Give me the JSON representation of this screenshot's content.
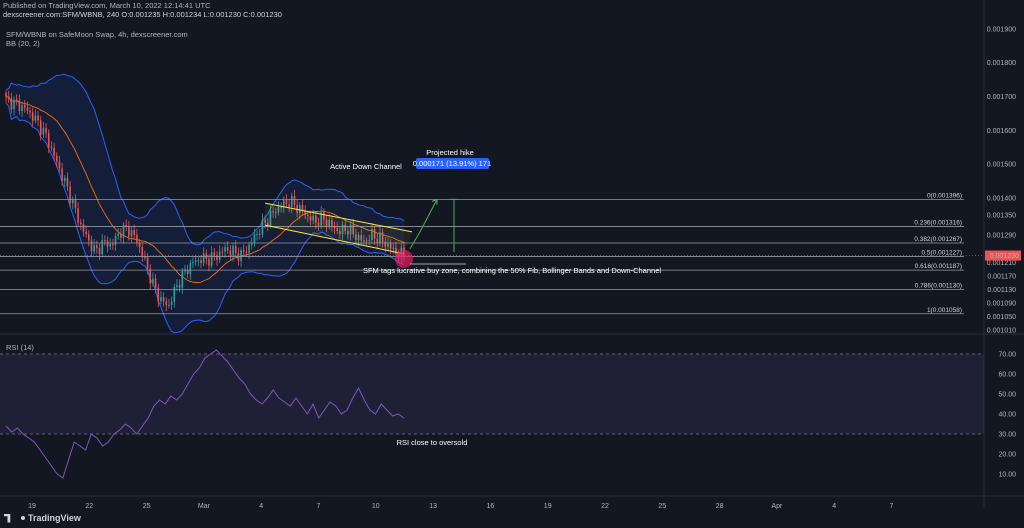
{
  "header": {
    "published": "Published on TradingView.com, March 10, 2022 12:14:41 UTC",
    "ohlc": "dexscreener.com:SFM/WBNB, 240 O:0.001235 H:0.001234 L:0.001230 C:0.001230"
  },
  "legend": {
    "title": "SFM/WBNB on SafeMoon Swap, 4h, dexscreener.com",
    "bb": "BB (20, 2)"
  },
  "rsi_label": "RSI (14)",
  "branding": "TradingView",
  "colors": {
    "background": "#131722",
    "up": "#26a69a",
    "down": "#ef5350",
    "bb_band": "#2962ff",
    "bb_basis": "#ff6d00",
    "channel": "#ffeb3b",
    "projection": "#4caf50",
    "rsi": "#7e57c2",
    "price_tag": "#ef5350"
  },
  "chart_data": {
    "type": "candlestick",
    "x_ticks": [
      "19",
      "22",
      "25",
      "Mar",
      "4",
      "7",
      "10",
      "13",
      "16",
      "19",
      "22",
      "25",
      "28",
      "Apr",
      "4",
      "7"
    ],
    "y_ticks": [
      "0.001900",
      "0.001800",
      "0.001700",
      "0.001600",
      "0.001500",
      "0.001400",
      "0.001350",
      "0.001290",
      "0.001210",
      "0.001170",
      "0.001130",
      "0.001090",
      "0.001050",
      "0.001010"
    ],
    "y_tick_values": [
      0.0019,
      0.0018,
      0.0017,
      0.0016,
      0.0015,
      0.0014,
      0.00135,
      0.00129,
      0.00121,
      0.00117,
      0.00113,
      0.00109,
      0.00105,
      0.00101
    ],
    "last_price": "0.001230",
    "last_price_value": 0.00123,
    "price_path": [
      0.00169,
      0.00168,
      0.00167,
      0.00165,
      0.00162,
      0.00158,
      0.00152,
      0.00146,
      0.0014,
      0.00133,
      0.00128,
      0.00124,
      0.00127,
      0.00126,
      0.0013,
      0.00131,
      0.00128,
      0.00122,
      0.00115,
      0.0011,
      0.00108,
      0.00114,
      0.00118,
      0.00121,
      0.00122,
      0.00122,
      0.00123,
      0.00125,
      0.00124,
      0.00123,
      0.00126,
      0.0013,
      0.00133,
      0.00136,
      0.00138,
      0.00139,
      0.00137,
      0.00135,
      0.00133,
      0.00134,
      0.00132,
      0.0013,
      0.00131,
      0.00129,
      0.00127,
      0.00129,
      0.00128,
      0.00126,
      0.00124,
      0.00123
    ],
    "fib_levels": [
      {
        "label": "0(0.001396)",
        "value": 0.001396
      },
      {
        "label": "0.236(0.001316)",
        "value": 0.001316
      },
      {
        "label": "0.382(0.001267)",
        "value": 0.001267
      },
      {
        "label": "0.5(0.001227)",
        "value": 0.001227
      },
      {
        "label": "0.618(0.001187)",
        "value": 0.001187
      },
      {
        "label": "0.786(0.001130)",
        "value": 0.00113
      },
      {
        "label": "1(0.001058)",
        "value": 0.001058
      }
    ],
    "annotations": {
      "channel": "Active Down Channel",
      "projected_title": "Projected hike",
      "projected_box": "0.000171 (13.91%) 171",
      "buy_zone": "SFM tags lucrative buy zone, combining the 50% Fib, Bollinger Bands and Down-Channel",
      "rsi_note": "RSI close to oversold"
    },
    "rsi": {
      "y_ticks": [
        "70.00",
        "60.00",
        "50.00",
        "40.00",
        "30.00",
        "20.00",
        "10.00"
      ],
      "y_tick_values": [
        70,
        60,
        50,
        40,
        30,
        20,
        10
      ],
      "upper": 70,
      "lower": 30,
      "values": [
        34,
        31,
        33,
        30,
        28,
        26,
        22,
        18,
        14,
        10,
        8,
        17,
        26,
        24,
        22,
        30,
        28,
        24,
        26,
        30,
        32,
        35,
        33,
        30,
        34,
        38,
        44,
        47,
        45,
        49,
        47,
        50,
        55,
        60,
        63,
        68,
        70,
        72,
        69,
        66,
        62,
        58,
        55,
        50,
        47,
        45,
        48,
        52,
        48,
        46,
        44,
        48,
        44,
        40,
        45,
        38,
        42,
        46,
        44,
        40,
        42,
        48,
        53,
        47,
        42,
        40,
        45,
        42,
        39,
        40,
        38
      ]
    }
  }
}
